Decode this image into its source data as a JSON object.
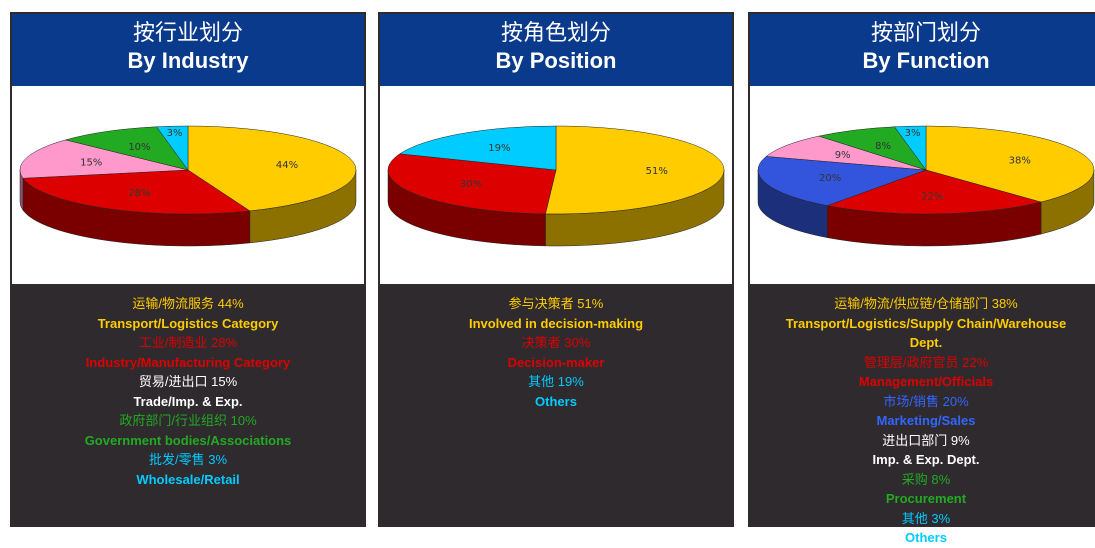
{
  "chart_data": [
    {
      "type": "pie",
      "title": "按行业划分",
      "subtitle": "By Industry",
      "categories_zh": [
        "运输/物流服务",
        "工业/制造业",
        "贸易/进出口",
        "政府部门/行业组织",
        "批发/零售"
      ],
      "categories": [
        "Transport/Logistics Category",
        "Industry/Manufacturing Category",
        "Trade/Imp. & Exp.",
        "Government bodies/Associations",
        "Wholesale/Retail"
      ],
      "values": [
        44,
        28,
        15,
        10,
        3
      ],
      "value_labels": [
        "44%",
        "28%",
        "15%",
        "10%",
        "3%"
      ],
      "colors": [
        "#ffcc00",
        "#dd0000",
        "#ff99cc",
        "#22aa22",
        "#00ccff"
      ],
      "text_colors": [
        "#ffcc00",
        "#dd0000",
        "#ffffff",
        "#22aa22",
        "#00ccff"
      ]
    },
    {
      "type": "pie",
      "title": "按角色划分",
      "subtitle": "By Position",
      "categories_zh": [
        "参与决策者",
        "决策者",
        "其他"
      ],
      "categories": [
        "Involved in decision-making",
        "Decision-maker",
        "Others"
      ],
      "values": [
        51,
        30,
        19
      ],
      "value_labels": [
        "51%",
        "30%",
        "19%"
      ],
      "colors": [
        "#ffcc00",
        "#dd0000",
        "#00ccff"
      ],
      "text_colors": [
        "#ffcc00",
        "#dd0000",
        "#00ccff"
      ]
    },
    {
      "type": "pie",
      "title": "按部门划分",
      "subtitle": "By Function",
      "categories_zh": [
        "运输/物流/供应链/仓储部门",
        "管理层/政府官员",
        "市场/销售",
        "进出口部门",
        "采购",
        "其他"
      ],
      "categories": [
        "Transport/Logistics/Supply Chain/Warehouse Dept.",
        "Management/Officials",
        "Marketing/Sales",
        "Imp. & Exp. Dept.",
        "Procurement",
        "Others"
      ],
      "values": [
        38,
        22,
        20,
        9,
        8,
        3
      ],
      "value_labels": [
        "38%",
        "22%",
        "20%",
        "9%",
        "8%",
        "3%"
      ],
      "colors": [
        "#ffcc00",
        "#dd0000",
        "#3355dd",
        "#ff99cc",
        "#22aa22",
        "#00ccff"
      ],
      "text_colors": [
        "#ffcc00",
        "#dd0000",
        "#3366ff",
        "#ffffff",
        "#22aa22",
        "#00ccff"
      ]
    }
  ]
}
